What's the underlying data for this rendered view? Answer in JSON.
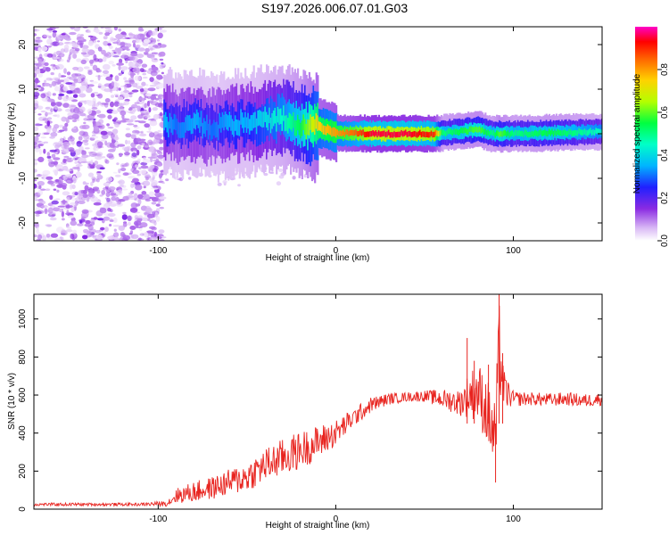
{
  "figure": {
    "title": "S197.2026.006.07.01.G03"
  },
  "chart_data": [
    {
      "type": "heatmap",
      "xlabel": "Height of straight line (km)",
      "ylabel": "Frequency (Hz)",
      "xlim": [
        -170,
        150
      ],
      "ylim": [
        -24,
        24
      ],
      "xticks": [
        {
          "v": -100,
          "label": "-100"
        },
        {
          "v": 0,
          "label": "0"
        },
        {
          "v": 100,
          "label": "100"
        }
      ],
      "yticks": [
        {
          "v": 20,
          "label": "20"
        },
        {
          "v": 10,
          "label": "10"
        },
        {
          "v": 0,
          "label": "0"
        },
        {
          "v": -10,
          "label": "-10"
        },
        {
          "v": -20,
          "label": "-20"
        }
      ],
      "colorbar": {
        "label": "Normalized spectral amplitude",
        "range": [
          0,
          1
        ],
        "ticks": [
          {
            "v": 0.0,
            "label": "0.0"
          },
          {
            "v": 0.2,
            "label": "0.2"
          },
          {
            "v": 0.4,
            "label": "0.4"
          },
          {
            "v": 0.6,
            "label": "0.6"
          },
          {
            "v": 0.8,
            "label": "0.8"
          }
        ]
      },
      "noise_region": {
        "x": [
          -170,
          -97
        ],
        "f": [
          -24,
          24
        ],
        "amplitude": [
          0.02,
          0.12
        ]
      },
      "ridge": [
        {
          "x": -96,
          "f": 2.5,
          "a": 0.35
        },
        {
          "x": -90,
          "f": 2.0,
          "a": 0.3
        },
        {
          "x": -80,
          "f": 2.5,
          "a": 0.35
        },
        {
          "x": -70,
          "f": 1.5,
          "a": 0.3
        },
        {
          "x": -60,
          "f": 2.0,
          "a": 0.35
        },
        {
          "x": -50,
          "f": 2.5,
          "a": 0.35
        },
        {
          "x": -40,
          "f": 3.0,
          "a": 0.4
        },
        {
          "x": -30,
          "f": 3.5,
          "a": 0.45
        },
        {
          "x": -20,
          "f": 2.0,
          "a": 0.55
        },
        {
          "x": -10,
          "f": 1.5,
          "a": 0.75
        },
        {
          "x": 0,
          "f": 0.2,
          "a": 0.8
        },
        {
          "x": 10,
          "f": 0.1,
          "a": 0.85
        },
        {
          "x": 20,
          "f": 0.0,
          "a": 0.95
        },
        {
          "x": 40,
          "f": 0.0,
          "a": 0.95
        },
        {
          "x": 55,
          "f": 0.0,
          "a": 0.9
        },
        {
          "x": 60,
          "f": 0.2,
          "a": 0.5
        },
        {
          "x": 70,
          "f": 0.5,
          "a": 0.55
        },
        {
          "x": 80,
          "f": 1.0,
          "a": 0.6
        },
        {
          "x": 88,
          "f": 0.0,
          "a": 0.5
        },
        {
          "x": 92,
          "f": 0.0,
          "a": 0.6
        },
        {
          "x": 100,
          "f": 0.0,
          "a": 0.5
        },
        {
          "x": 120,
          "f": 0.2,
          "a": 0.55
        },
        {
          "x": 150,
          "f": 0.5,
          "a": 0.45
        }
      ]
    },
    {
      "type": "line",
      "xlabel": "Height of straight line (km)",
      "ylabel": "SNR (10 * v/v)",
      "xlim": [
        -170,
        150
      ],
      "ylim": [
        0,
        1130
      ],
      "xticks": [
        {
          "v": -100,
          "label": "-100"
        },
        {
          "v": 0,
          "label": "0"
        },
        {
          "v": 100,
          "label": "100"
        }
      ],
      "yticks": [
        {
          "v": 0,
          "label": "0"
        },
        {
          "v": 200,
          "label": "200"
        },
        {
          "v": 400,
          "label": "400"
        },
        {
          "v": 600,
          "label": "600"
        },
        {
          "v": 800,
          "label": "800"
        },
        {
          "v": 1000,
          "label": "1000"
        }
      ],
      "series": [
        {
          "name": "SNR",
          "color": "#e8241f",
          "x": [
            -170,
            -150,
            -130,
            -110,
            -95,
            -90,
            -80,
            -70,
            -60,
            -50,
            -40,
            -30,
            -20,
            -10,
            0,
            10,
            20,
            30,
            40,
            50,
            60,
            70,
            75,
            80,
            85,
            90,
            92,
            95,
            100,
            110,
            120,
            130,
            140,
            150
          ],
          "y": [
            25,
            25,
            25,
            25,
            30,
            70,
            90,
            110,
            140,
            170,
            230,
            270,
            310,
            350,
            400,
            480,
            550,
            580,
            590,
            595,
            580,
            560,
            600,
            620,
            520,
            350,
            850,
            620,
            580,
            580,
            575,
            580,
            570,
            580
          ],
          "spread": [
            8,
            8,
            8,
            8,
            15,
            40,
            55,
            60,
            70,
            80,
            90,
            100,
            100,
            90,
            70,
            50,
            40,
            30,
            25,
            30,
            50,
            70,
            120,
            160,
            180,
            220,
            260,
            100,
            40,
            35,
            35,
            35,
            35,
            35
          ]
        }
      ]
    }
  ]
}
